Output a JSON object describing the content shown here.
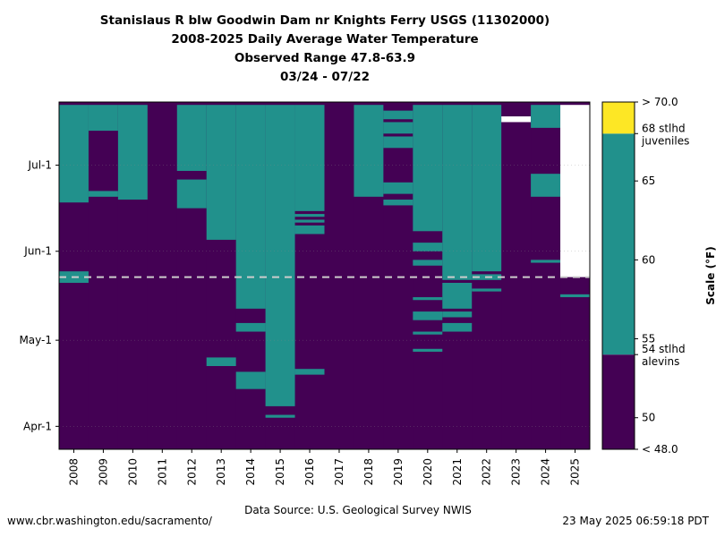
{
  "titles": {
    "line1": "Stanislaus R blw Goodwin Dam nr Knights Ferry USGS (11302000)",
    "line2": "2008-2025 Daily Average Water Temperature",
    "line3": "Observed Range 47.8-63.9",
    "line4": "03/24 - 07/22"
  },
  "footer": {
    "left": "www.cbr.washington.edu/sacramento/",
    "center": "Data Source: U.S. Geological Survey NWIS",
    "right": "23 May 2025 06:59:18 PDT"
  },
  "colors": {
    "cold": "#440154",
    "mid": "#21918c",
    "hot": "#fde725",
    "missing": "#ffffff",
    "today_line": "#cccccc"
  },
  "chart_data": {
    "type": "heatmap",
    "x_categories": [
      "2008",
      "2009",
      "2010",
      "2011",
      "2012",
      "2013",
      "2014",
      "2015",
      "2016",
      "2017",
      "2018",
      "2019",
      "2020",
      "2021",
      "2022",
      "2023",
      "2024",
      "2025"
    ],
    "y_start_date": "03/24",
    "y_end_date": "07/22",
    "y_ticks": [
      {
        "label": "Apr-1",
        "day": 8
      },
      {
        "label": "May-1",
        "day": 38
      },
      {
        "label": "Jun-1",
        "day": 69
      },
      {
        "label": "Jul-1",
        "day": 99
      }
    ],
    "today_line_day": 60,
    "colorbar": {
      "label": "Scale (°F)",
      "min": 48.0,
      "max": 70.0,
      "ticks": [
        50,
        55,
        60,
        65
      ],
      "top_label": "> 70.0",
      "bottom_label": "< 48.0",
      "thresholds": [
        {
          "value": 54,
          "line1": "54 stlhd",
          "line2": "alevins"
        },
        {
          "value": 68,
          "line1": "68 stlhd",
          "line2": "juveniles"
        }
      ]
    },
    "bands": [
      {
        "min": 48.0,
        "max": 54.0,
        "class": "cold"
      },
      {
        "min": 54.0,
        "max": 68.0,
        "class": "mid"
      },
      {
        "min": 68.0,
        "max": 70.0,
        "class": "hot"
      }
    ],
    "cells_description": "day ranges (days since 03/24) where the daily average water temperature was in the 54-68 °F band; all other observed days were below 54 °F; missing = no data",
    "years": [
      {
        "year": "2008",
        "mid": [
          [
            58,
            62
          ],
          [
            86,
            120
          ]
        ]
      },
      {
        "year": "2009",
        "mid": [
          [
            88,
            90
          ],
          [
            111,
            120
          ]
        ]
      },
      {
        "year": "2010",
        "mid": [
          [
            87,
            120
          ]
        ]
      },
      {
        "year": "2011",
        "mid": []
      },
      {
        "year": "2012",
        "mid": [
          [
            84,
            94
          ],
          [
            97,
            120
          ]
        ]
      },
      {
        "year": "2013",
        "mid": [
          [
            29,
            32
          ],
          [
            73,
            120
          ]
        ]
      },
      {
        "year": "2014",
        "mid": [
          [
            21,
            27
          ],
          [
            41,
            44
          ],
          [
            49,
            120
          ]
        ]
      },
      {
        "year": "2015",
        "mid": [
          [
            11,
            12
          ],
          [
            15,
            120
          ]
        ]
      },
      {
        "year": "2016",
        "mid": [
          [
            26,
            28
          ],
          [
            75,
            78
          ],
          [
            79,
            80
          ],
          [
            81,
            82
          ],
          [
            83,
            120
          ]
        ]
      },
      {
        "year": "2017",
        "mid": []
      },
      {
        "year": "2018",
        "mid": [
          [
            88,
            120
          ]
        ]
      },
      {
        "year": "2019",
        "mid": [
          [
            85,
            87
          ],
          [
            89,
            93
          ],
          [
            105,
            109
          ],
          [
            110,
            114
          ],
          [
            115,
            118
          ]
        ]
      },
      {
        "year": "2020",
        "mid": [
          [
            34,
            35
          ],
          [
            40,
            41
          ],
          [
            45,
            48
          ],
          [
            52,
            53
          ],
          [
            64,
            66
          ],
          [
            69,
            72
          ],
          [
            76,
            120
          ]
        ]
      },
      {
        "year": "2021",
        "mid": [
          [
            41,
            44
          ],
          [
            46,
            48
          ],
          [
            49,
            58
          ],
          [
            59,
            120
          ]
        ]
      },
      {
        "year": "2022",
        "mid": [
          [
            55,
            56
          ],
          [
            59,
            61
          ],
          [
            62,
            120
          ]
        ]
      },
      {
        "year": "2023",
        "mid": [],
        "missing": [
          [
            114,
            116
          ]
        ]
      },
      {
        "year": "2024",
        "mid": [
          [
            65,
            66
          ],
          [
            88,
            96
          ],
          [
            112,
            120
          ]
        ]
      },
      {
        "year": "2025",
        "mid": [
          [
            53,
            54
          ]
        ],
        "missing": [
          [
            60,
            120
          ]
        ]
      }
    ]
  }
}
